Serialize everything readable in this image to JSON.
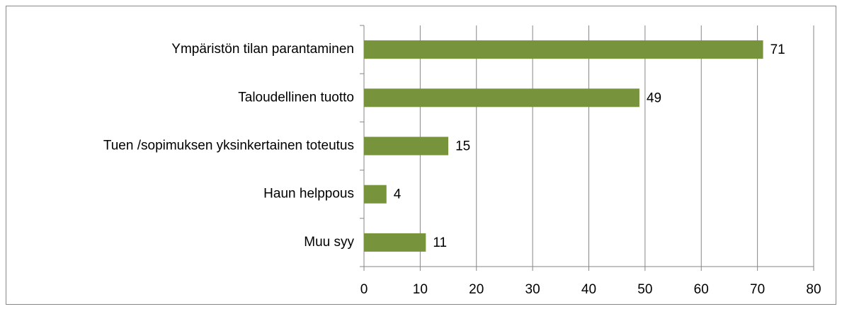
{
  "chart_data": {
    "type": "bar",
    "orientation": "horizontal",
    "categories": [
      "Ympäristön tilan parantaminen",
      "Taloudellinen tuotto",
      "Tuen /sopimuksen yksinkertainen toteutus",
      "Haun helppous",
      "Muu syy"
    ],
    "values": [
      71,
      49,
      15,
      4,
      11
    ],
    "color": "#77933c",
    "xlim": [
      0,
      80
    ],
    "xticks": [
      0,
      10,
      20,
      30,
      40,
      50,
      60,
      70,
      80
    ],
    "grid": true
  }
}
